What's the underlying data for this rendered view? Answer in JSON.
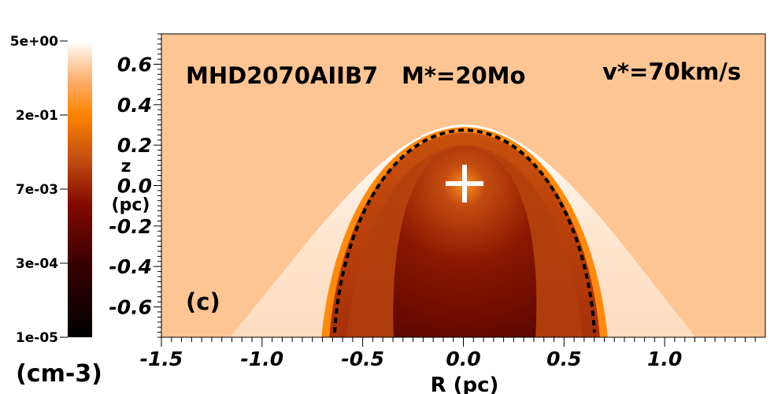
{
  "chart_data": {
    "type": "heatmap",
    "title": "MHD2070AIIB7",
    "annotations": {
      "model": "MHD2070AIIB7",
      "mass": "M*=20Mo",
      "velocity": "v*=70km/s",
      "panel": "(c)"
    },
    "xlabel": "R (pc)",
    "ylabel_top": "z",
    "ylabel_bottom": "(pc)",
    "xlim": [
      -1.5,
      1.5
    ],
    "ylim": [
      -0.75,
      0.75
    ],
    "xticks": [
      "-1.5",
      "-1.0",
      "-0.5",
      "0.0",
      "0.5",
      "1.0"
    ],
    "xtick_values": [
      -1.5,
      -1.0,
      -0.5,
      0.0,
      0.5,
      1.0
    ],
    "yticks": [
      "0.6",
      "0.4",
      "0.2",
      "0.0",
      "-0.2",
      "-0.4",
      "-0.6"
    ],
    "ytick_values": [
      0.6,
      0.4,
      0.2,
      0.0,
      -0.2,
      -0.4,
      -0.6
    ],
    "colorbar": {
      "scale": "log",
      "unit": "(cm-3)",
      "ticks": [
        "5e+00",
        "2e-01",
        "7e-03",
        "3e-04",
        "1e-05"
      ],
      "range": [
        1e-05,
        5
      ]
    },
    "star_position": [
      0.0,
      0.0
    ],
    "bow_shock_apex_z": 0.26,
    "contour_R_at_bottom": [
      -0.65,
      0.65
    ],
    "colors": {
      "background": "#fdc594",
      "shell": "#e06a10",
      "interior": "#7a1000"
    }
  }
}
